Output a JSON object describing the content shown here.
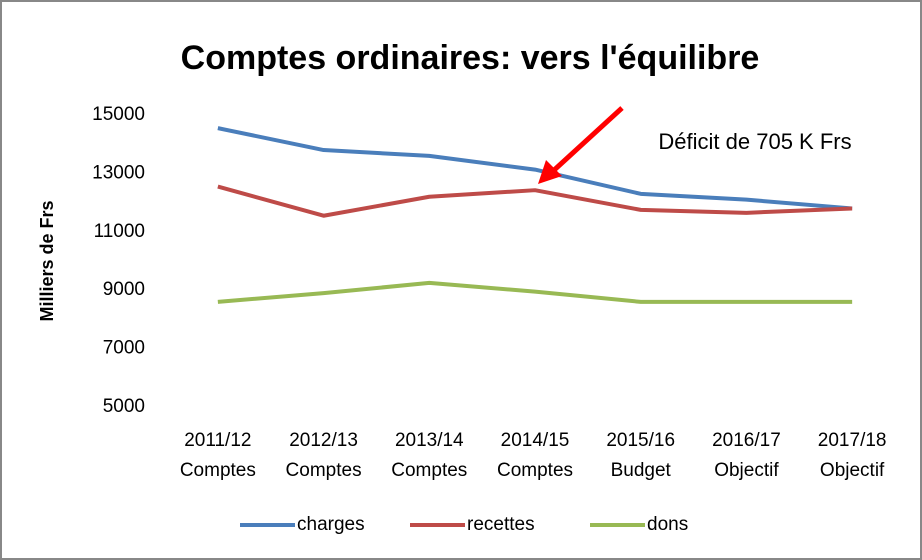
{
  "chart_data": {
    "type": "line",
    "title": "Comptes ordinaires: vers l'équilibre",
    "ylabel": "Milliers de Frs",
    "categories": [
      [
        "2011/12",
        "Comptes"
      ],
      [
        "2012/13",
        "Comptes"
      ],
      [
        "2013/14",
        "Comptes"
      ],
      [
        "2014/15",
        "Comptes"
      ],
      [
        "2015/16",
        "Budget"
      ],
      [
        "2016/17",
        "Objectif"
      ],
      [
        "2017/18",
        "Objectif"
      ]
    ],
    "series": [
      {
        "name": "charges",
        "color": "#4a7ebb",
        "values": [
          14550,
          13800,
          13600,
          13130,
          12300,
          12100,
          11800
        ]
      },
      {
        "name": "recettes",
        "color": "#be4b48",
        "values": [
          12550,
          11550,
          12200,
          12425,
          11750,
          11650,
          11800
        ]
      },
      {
        "name": "dons",
        "color": "#98b954",
        "values": [
          8600,
          8900,
          9250,
          8950,
          8600,
          8600,
          8600
        ]
      }
    ],
    "ylim": [
      5000,
      15000
    ],
    "yticks": [
      5000,
      7000,
      9000,
      11000,
      13000,
      15000
    ],
    "grid": false,
    "legend": "bottom",
    "annotation": {
      "text": "Déficit de 705 K Frs",
      "color": "#ff0000"
    }
  }
}
